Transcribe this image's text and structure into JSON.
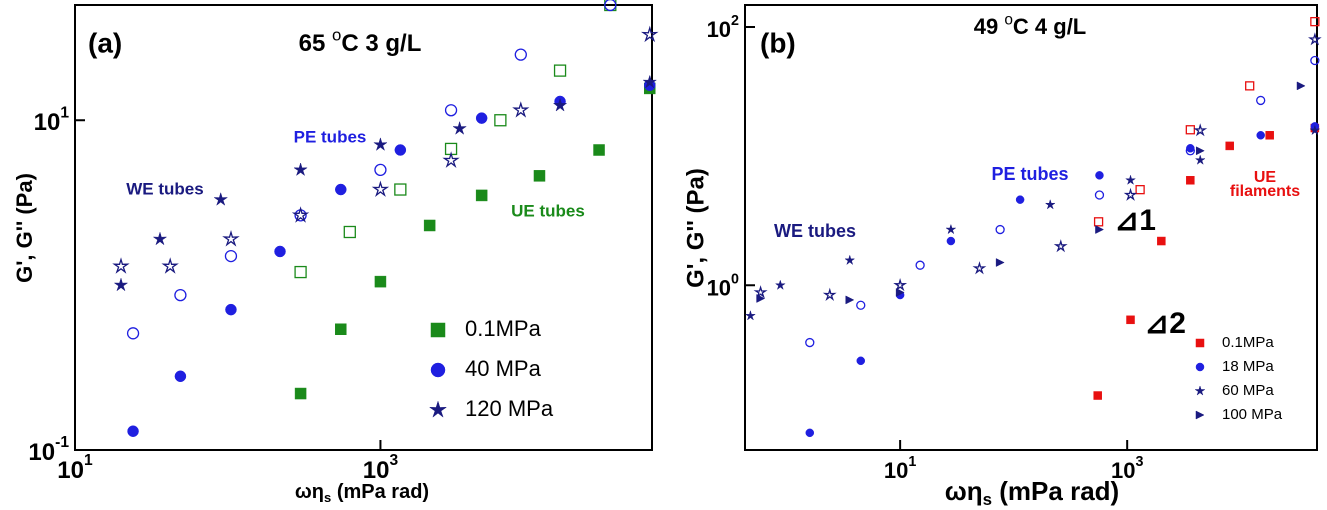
{
  "chart_data": [
    {
      "type": "scatter",
      "panel_label": "(a)",
      "title": {
        "text": "65 ",
        "sup": "o",
        "suffix": "C 3 g/L"
      },
      "xlabel": {
        "text": "ωη",
        "sub": "s",
        "suffix": " (mPa rad)"
      },
      "ylabel": "G', G'' (Pa)",
      "log_x": true,
      "log_y": true,
      "xlim": [
        10,
        60000
      ],
      "ylim": [
        0.1,
        50
      ],
      "xticks": [
        {
          "value": 10,
          "label": "10",
          "exponent": "1"
        },
        {
          "value": 1000,
          "label": "10",
          "exponent": "3"
        }
      ],
      "yticks": [
        {
          "value": 0.1,
          "label": "10",
          "exponent": "-1"
        },
        {
          "value": 10,
          "label": "10",
          "exponent": "1"
        }
      ],
      "annotations": [
        {
          "text": "WE tubes",
          "color": "#1a1a80"
        },
        {
          "text": "PE tubes",
          "color": "#1f1fe0"
        },
        {
          "text": "UE tubes",
          "color": "#1a8a1a"
        }
      ],
      "series": [
        {
          "name": "0.1MPa",
          "color": "#1a8a1a",
          "marker": "square",
          "x": [
            300,
            550,
            1000,
            2100,
            4600,
            11000,
            27000,
            58000
          ],
          "values": [
            0.22,
            0.54,
            1.05,
            2.3,
            3.5,
            4.6,
            6.6,
            15.6
          ],
          "open_x": [
            300,
            630,
            1350,
            2900,
            6100,
            15000,
            32000
          ],
          "open_values": [
            1.2,
            2.1,
            3.8,
            6.7,
            10,
            20,
            50
          ]
        },
        {
          "name": "40 MPa",
          "color": "#1f1fe0",
          "marker": "circle",
          "x": [
            24,
            49,
            105,
            220,
            550,
            1350,
            4600,
            15000,
            58000
          ],
          "values": [
            0.13,
            0.28,
            0.71,
            1.6,
            3.8,
            6.6,
            10.3,
            13,
            16.3
          ],
          "open_x": [
            24,
            49,
            105,
            300,
            1000,
            2900,
            8300,
            32000
          ],
          "open_values": [
            0.51,
            0.87,
            1.5,
            2.65,
            5,
            11.5,
            25,
            50
          ]
        },
        {
          "name": "120 MPa",
          "color": "#1a1a80",
          "marker": "star",
          "x": [
            20,
            36,
            90,
            300,
            1000,
            3300,
            15000,
            58000
          ],
          "values": [
            1.0,
            1.9,
            3.3,
            5,
            7.1,
            8.9,
            12.3,
            17
          ],
          "open_x": [
            20,
            42,
            105,
            300,
            1000,
            2900,
            8300,
            58000
          ],
          "open_values": [
            1.3,
            1.3,
            1.9,
            2.65,
            3.8,
            5.7,
            11.5,
            33
          ]
        }
      ]
    },
    {
      "type": "scatter",
      "panel_label": "(b)",
      "title": {
        "text": "49 ",
        "sup": "o",
        "suffix": "C 4 g/L"
      },
      "xlabel": {
        "text": "ωη",
        "sub": "s",
        "suffix": " (mPa rad)"
      },
      "ylabel": "G', G'' (Pa)",
      "log_x": true,
      "log_y": true,
      "xlim": [
        0.43,
        47000
      ],
      "ylim": [
        0.053,
        148
      ],
      "xticks": [
        {
          "value": 10,
          "label": "10",
          "exponent": "1"
        },
        {
          "value": 1000,
          "label": "10",
          "exponent": "3"
        }
      ],
      "yticks": [
        {
          "value": 1,
          "label": "10",
          "exponent": "0"
        },
        {
          "value": 100,
          "label": "10",
          "exponent": "2"
        }
      ],
      "annotations": [
        {
          "text": "WE tubes",
          "color": "#1a1a80"
        },
        {
          "text": "PE tubes",
          "color": "#1f1fe0"
        },
        {
          "text": "UE",
          "color": "#e81010"
        },
        {
          "text": "filaments",
          "color": "#e81010"
        },
        {
          "text": "⊿1",
          "color": "#000000"
        },
        {
          "text": "⊿2",
          "color": "#000000"
        }
      ],
      "series": [
        {
          "name": "0.1MPa",
          "color": "#e81010",
          "marker": "square",
          "x": [
            550,
            1070,
            2000,
            3600,
            8000,
            18000,
            45000
          ],
          "values": [
            0.14,
            0.54,
            2.2,
            6.5,
            12,
            14.5,
            16.5
          ],
          "open_x": [
            560,
            1300,
            3600,
            12000,
            45000
          ],
          "open_values": [
            3.1,
            5.5,
            16,
            35,
            110
          ]
        },
        {
          "name": "18 MPa",
          "color": "#1f1fe0",
          "marker": "circle",
          "x": [
            1.6,
            4.5,
            10,
            28,
            114,
            570,
            3600,
            15000,
            45000
          ],
          "values": [
            0.072,
            0.26,
            0.84,
            2.2,
            4.6,
            7.1,
            11.5,
            14.5,
            17
          ],
          "open_x": [
            1.6,
            4.5,
            15,
            76,
            570,
            3600,
            15000,
            45000
          ],
          "open_values": [
            0.36,
            0.7,
            1.43,
            2.7,
            5,
            11,
            27,
            55
          ]
        },
        {
          "name": "60 MPa",
          "color": "#1a1a80",
          "marker": "star",
          "x": [
            0.48,
            0.88,
            3.6,
            28,
            210,
            1070,
            4400,
            45000
          ],
          "values": [
            0.58,
            1.0,
            1.56,
            2.7,
            4.2,
            6.5,
            9.3,
            15.8
          ],
          "open_x": [
            0.59,
            2.4,
            10,
            50,
            260,
            1070,
            4400,
            45000
          ],
          "open_values": [
            0.88,
            0.84,
            1.0,
            1.35,
            2.0,
            5,
            15.8,
            80
          ]
        },
        {
          "name": "100 MPa",
          "color": "#1a1a80",
          "marker": "triangle",
          "x": [
            0.59,
            3.6,
            10,
            76,
            570,
            4400,
            34000
          ],
          "values": [
            0.79,
            0.77,
            0.88,
            1.5,
            2.7,
            11,
            35
          ],
          "open_x": [],
          "open_values": []
        }
      ]
    }
  ]
}
